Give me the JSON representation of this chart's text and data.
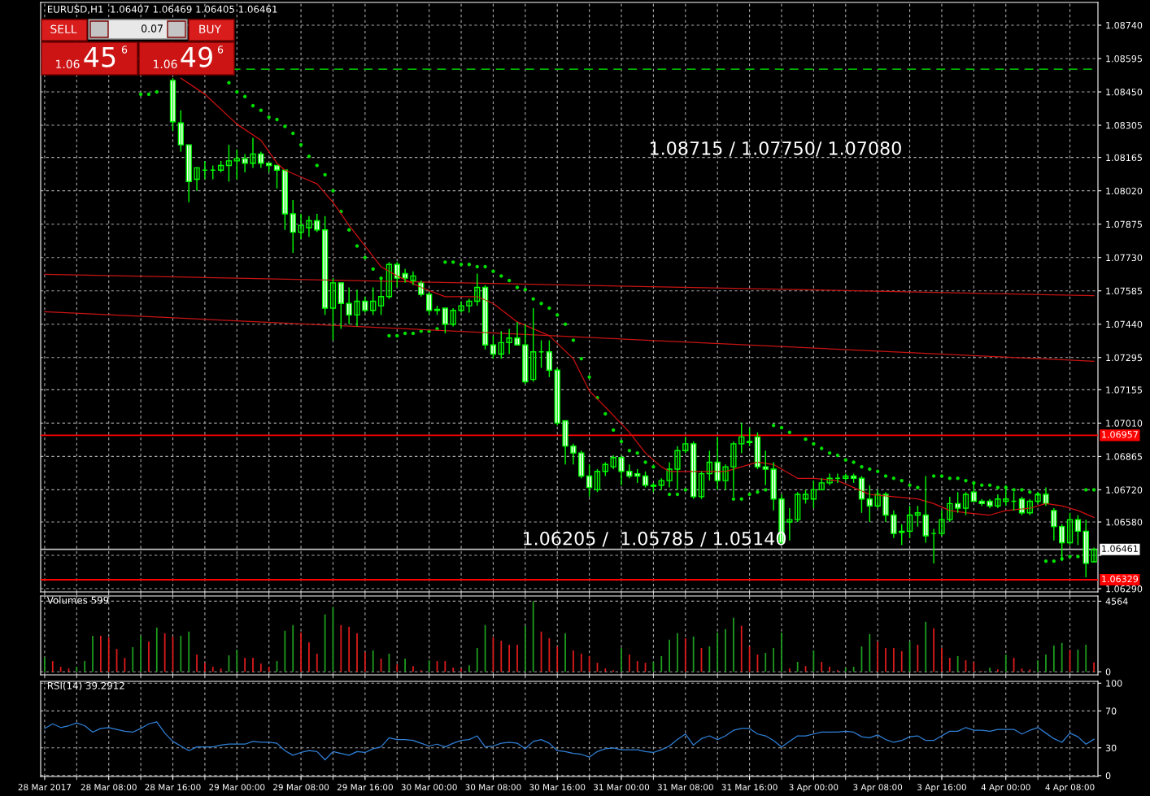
{
  "chart_data": [
    {
      "type": "candlestick",
      "title": "EURUSD,H1  1.06407 1.06469 1.06405 1.06461",
      "color": "#00ff00",
      "grid": true,
      "tick_labels": "y",
      "categories": [
        null,
        null,
        null,
        null,
        null,
        null,
        null,
        null,
        null,
        null,
        null,
        null,
        null,
        null,
        null,
        null,
        null,
        null,
        null,
        null,
        null,
        null,
        null,
        null,
        null,
        null,
        null,
        null,
        null,
        null,
        null,
        null,
        null,
        null,
        null,
        null,
        null,
        null,
        null,
        null,
        null,
        null,
        null,
        null,
        null,
        null,
        null,
        null,
        null,
        null,
        null,
        null,
        null,
        null,
        null,
        null,
        null,
        null,
        null,
        null,
        null,
        null,
        null,
        null,
        null,
        null,
        null,
        null,
        null,
        null,
        null,
        null,
        null,
        null,
        null,
        null,
        null,
        null,
        null,
        null,
        null,
        null,
        null,
        null,
        null,
        null,
        null,
        null,
        null,
        null,
        null,
        null,
        null,
        null,
        null,
        null,
        null,
        null,
        null,
        null,
        null,
        null,
        null,
        null,
        null,
        null,
        null,
        null,
        null,
        null,
        null,
        null,
        null,
        null,
        null,
        null,
        null,
        null,
        null,
        null,
        null,
        null,
        null,
        null,
        null,
        null,
        null,
        null,
        null,
        null,
        null,
        null
      ],
      "ohlc": [
        null,
        null,
        null,
        null,
        null,
        null,
        null,
        null,
        null,
        null,
        null,
        null,
        null,
        null,
        null,
        null,
        [
          1.085,
          1.0851,
          1.0828,
          1.0832
        ],
        [
          1.08315,
          1.0837,
          1.0819,
          1.0822
        ],
        [
          1.0822,
          1.0822,
          1.0797,
          1.0806
        ],
        [
          1.0807,
          1.0812,
          1.0802,
          1.0812
        ],
        [
          1.0811,
          1.0815,
          1.0807,
          1.0811
        ],
        [
          1.0811,
          1.0813,
          1.0807,
          1.0811
        ],
        [
          1.0811,
          1.0815,
          1.081,
          1.0813
        ],
        [
          1.0813,
          1.0822,
          1.0806,
          1.0815
        ],
        [
          1.0815,
          1.082,
          1.0807,
          1.0816
        ],
        [
          1.0816,
          1.0818,
          1.081,
          1.0814
        ],
        [
          1.0814,
          1.0825,
          1.0812,
          1.0818
        ],
        [
          1.0818,
          1.0819,
          1.0812,
          1.0814
        ],
        [
          1.0814,
          1.0814,
          1.081,
          1.0813
        ],
        [
          1.0813,
          1.0813,
          1.0803,
          1.0811
        ],
        [
          1.0811,
          1.0811,
          1.0785,
          1.0792
        ],
        [
          1.0792,
          1.0798,
          1.0775,
          1.0784
        ],
        [
          1.0784,
          1.0792,
          1.0781,
          1.0787
        ],
        [
          1.0786,
          1.0791,
          1.0782,
          1.0789
        ],
        [
          1.0789,
          1.0792,
          1.0784,
          1.0785
        ],
        [
          1.0785,
          1.0791,
          1.0748,
          1.0751
        ],
        [
          1.0751,
          1.0764,
          1.0737,
          1.0762
        ],
        [
          1.0762,
          1.0762,
          1.0742,
          1.0753
        ],
        [
          1.0753,
          1.076,
          1.0744,
          1.0748
        ],
        [
          1.0748,
          1.0759,
          1.0743,
          1.0754
        ],
        [
          1.0754,
          1.0756,
          1.0749,
          1.075
        ],
        [
          1.075,
          1.076,
          1.0748,
          1.0754
        ],
        [
          1.0752,
          1.0764,
          1.0748,
          1.0756
        ],
        [
          1.0756,
          1.0771,
          1.0755,
          1.077
        ],
        [
          1.077,
          1.0771,
          1.076,
          1.0764
        ],
        [
          1.0766,
          1.0768,
          1.0762,
          1.0764
        ],
        [
          1.0763,
          1.0767,
          1.0761,
          1.0765
        ],
        [
          1.0762,
          1.0763,
          1.0756,
          1.0757
        ],
        [
          1.0757,
          1.0758,
          1.0748,
          1.075
        ],
        [
          1.07505,
          1.0752,
          1.0748,
          1.075
        ],
        [
          1.0751,
          1.0751,
          1.074,
          1.0744
        ],
        [
          1.0744,
          1.0751,
          1.0743,
          1.075
        ],
        [
          1.075,
          1.0754,
          1.0749,
          1.0752
        ],
        [
          1.0752,
          1.0755,
          1.0749,
          1.0754
        ],
        [
          1.0754,
          1.0766,
          1.0752,
          1.076
        ],
        [
          1.076,
          1.0761,
          1.0733,
          1.0735
        ],
        [
          1.0735,
          1.0739,
          1.0729,
          1.0731
        ],
        [
          1.0731,
          1.0741,
          1.0729,
          1.0736
        ],
        [
          1.0736,
          1.0742,
          1.0731,
          1.0738
        ],
        [
          1.0738,
          1.0745,
          1.0735,
          1.0735
        ],
        [
          1.0735,
          1.0744,
          1.0718,
          1.0719
        ],
        [
          1.072,
          1.0751,
          1.0719,
          1.0732
        ],
        [
          1.0732,
          1.0737,
          1.0725,
          1.0732
        ],
        [
          1.0732,
          1.0737,
          1.0721,
          1.0724
        ],
        [
          1.0724,
          1.0725,
          1.07,
          1.0701
        ],
        [
          1.0702,
          1.0702,
          1.0683,
          1.0691
        ],
        [
          1.0691,
          1.0692,
          1.0683,
          1.0688
        ],
        [
          1.0688,
          1.0689,
          1.0677,
          1.0678
        ],
        [
          1.0678,
          1.0683,
          1.0669,
          1.0673
        ],
        [
          1.0672,
          1.0681,
          1.0671,
          1.068
        ],
        [
          1.068,
          1.0684,
          1.0678,
          1.0683
        ],
        [
          1.0682,
          1.0687,
          1.0681,
          1.0686
        ],
        [
          1.0686,
          1.0687,
          1.0674,
          1.068
        ],
        [
          1.068,
          1.0683,
          1.0677,
          1.0678
        ],
        [
          1.0679,
          1.0681,
          1.0675,
          1.0678
        ],
        [
          1.0678,
          1.068,
          1.0673,
          1.0674
        ],
        [
          1.0674,
          1.0675,
          1.0671,
          1.06735
        ],
        [
          1.0674,
          1.0677,
          1.0672,
          1.0676
        ],
        [
          1.0676,
          1.0684,
          1.0673,
          1.0681
        ],
        [
          1.0681,
          1.0691,
          1.0672,
          1.0689
        ],
        [
          1.0689,
          1.0695,
          1.0688,
          1.0692
        ],
        [
          1.0692,
          1.0693,
          1.0668,
          1.0669
        ],
        [
          1.0669,
          1.068,
          1.0668,
          1.0679
        ],
        [
          1.0679,
          1.0689,
          1.0676,
          1.0684
        ],
        [
          1.0684,
          1.0695,
          1.0672,
          1.0676
        ],
        [
          1.0676,
          1.0683,
          1.0672,
          1.0682
        ],
        [
          1.0682,
          1.0693,
          1.0669,
          1.0692
        ],
        [
          1.0692,
          1.0701,
          1.0688,
          1.0695
        ],
        [
          1.0693,
          1.0699,
          1.0691,
          1.06925
        ],
        [
          1.0695,
          1.0697,
          1.0681,
          1.0682
        ],
        [
          1.0682,
          1.0689,
          1.0674,
          1.0681
        ],
        [
          1.0681,
          1.0684,
          1.0663,
          1.0668
        ],
        [
          1.0668,
          1.067,
          1.0648,
          1.0649
        ],
        [
          1.0658,
          1.0664,
          1.065,
          1.0659
        ],
        [
          1.0659,
          1.0671,
          1.0658,
          1.067
        ],
        [
          1.0668,
          1.0672,
          1.0666,
          1.067
        ],
        [
          1.0668,
          1.0676,
          1.0664,
          1.0672
        ],
        [
          1.0672,
          1.0677,
          1.0672,
          1.0675
        ],
        [
          1.0675,
          1.0679,
          1.0674,
          1.0677
        ],
        [
          1.0677,
          1.0679,
          1.0675,
          1.0677
        ],
        [
          1.0677,
          1.0679,
          1.0676,
          1.0678
        ],
        [
          1.0678,
          1.0679,
          1.0675,
          1.0677
        ],
        [
          1.0677,
          1.0678,
          1.0662,
          1.0668
        ],
        [
          1.0668,
          1.0674,
          1.0658,
          1.0665
        ],
        [
          1.0665,
          1.0672,
          1.0664,
          1.067
        ],
        [
          1.067,
          1.0671,
          1.0658,
          1.0661
        ],
        [
          1.0661,
          1.0663,
          1.0651,
          1.0653
        ],
        [
          1.0654,
          1.0657,
          1.0648,
          1.06535
        ],
        [
          1.0654,
          1.0665,
          1.0651,
          1.0661
        ],
        [
          1.0661,
          1.0665,
          1.0656,
          1.0662
        ],
        [
          1.0661,
          1.0678,
          1.0649,
          1.0652
        ],
        [
          1.0653,
          1.0655,
          1.064,
          1.0653
        ],
        [
          1.0653,
          1.0663,
          1.0652,
          1.0659
        ],
        [
          1.0659,
          1.0669,
          1.0658,
          1.0666
        ],
        [
          1.0666,
          1.0671,
          1.0662,
          1.0664
        ],
        [
          1.0664,
          1.0671,
          1.0661,
          1.067
        ],
        [
          1.0671,
          1.0675,
          1.0667,
          1.0667
        ],
        [
          1.0667,
          1.0668,
          1.0665,
          1.0666
        ],
        [
          1.0667,
          1.0668,
          1.0664,
          1.0665
        ],
        [
          1.0665,
          1.067,
          1.0664,
          1.0668
        ],
        [
          1.0667,
          1.0674,
          1.0665,
          1.0668
        ],
        [
          1.0667,
          1.0671,
          1.0663,
          1.0667
        ],
        [
          1.0668,
          1.0669,
          1.0661,
          1.0662
        ],
        [
          1.0662,
          1.0668,
          1.0661,
          1.0667
        ],
        [
          1.0667,
          1.0671,
          1.0666,
          1.067
        ],
        [
          1.067,
          1.0673,
          1.0665,
          1.0666
        ],
        [
          1.0663,
          1.0664,
          1.065,
          1.0656
        ],
        [
          1.0656,
          1.0657,
          1.0641,
          1.0649
        ],
        [
          1.0649,
          1.0662,
          1.0648,
          1.0659
        ],
        [
          1.0659,
          1.0661,
          1.0648,
          1.0654
        ],
        [
          1.0654,
          1.0659,
          1.0634,
          1.064
        ],
        [
          1.06407,
          1.06469,
          1.06405,
          1.06461
        ]
      ],
      "series": [
        {
          "type": "line",
          "color": "#d01010",
          "values": [
            null,
            null,
            null,
            null,
            null,
            null,
            null,
            null,
            null,
            null,
            null,
            null,
            null,
            null,
            null,
            null,
            null,
            1.0851,
            null,
            null,
            1.0844,
            null,
            null,
            null,
            1.0831,
            null,
            null,
            1.0824,
            null,
            1.0814,
            1.0811,
            null,
            1.0808,
            null,
            1.0805,
            null,
            1.0797,
            null,
            1.0787,
            null,
            1.0778,
            null,
            1.0769,
            null,
            1.0765,
            null,
            null,
            1.076,
            null,
            null,
            1.0756,
            null,
            null,
            1.0756,
            1.0756,
            null,
            1.0753,
            null,
            null,
            1.0745,
            null,
            null,
            null,
            1.0739,
            null,
            null,
            1.0729,
            null,
            1.0715,
            null,
            1.0708,
            null,
            null,
            1.0697,
            null,
            1.0688,
            null,
            1.0682,
            1.068,
            null,
            null,
            1.068,
            null,
            1.068,
            null,
            1.068,
            null,
            1.0682,
            null,
            1.0684,
            null,
            1.0683,
            null,
            null,
            1.0677,
            null,
            1.0677,
            null,
            null,
            1.0676,
            null,
            1.0673,
            null,
            1.067,
            null,
            null,
            1.0669,
            null,
            null,
            1.0668,
            null,
            1.0666,
            null,
            1.0663,
            null,
            1.0662,
            null,
            null,
            1.0661,
            null,
            1.0663,
            null,
            null,
            1.0664,
            null,
            1.0666,
            null,
            1.0665,
            null,
            1.0663,
            null,
            1.066
          ]
        },
        {
          "type": "line",
          "color": "#c81414",
          "values": [
            1.07657,
            null,
            null,
            null,
            null,
            null,
            null,
            null,
            null,
            null,
            null,
            null,
            null,
            null,
            null,
            null,
            null,
            null,
            null,
            null,
            null,
            null,
            null,
            null,
            null,
            null,
            null,
            null,
            null,
            null,
            null,
            null,
            null,
            null,
            null,
            null,
            null,
            null,
            null,
            null,
            null,
            null,
            null,
            null,
            null,
            null,
            null,
            null,
            null,
            null,
            null,
            null,
            null,
            null,
            null,
            null,
            null,
            null,
            null,
            null,
            null,
            null,
            null,
            null,
            null,
            null,
            null,
            null,
            null,
            null,
            null,
            null,
            null,
            null,
            null,
            null,
            null,
            null,
            null,
            null,
            null,
            null,
            null,
            null,
            null,
            null,
            null,
            null,
            null,
            null,
            null,
            null,
            null,
            null,
            null,
            null,
            null,
            null,
            null,
            null,
            null,
            null,
            null,
            null,
            null,
            null,
            null,
            null,
            null,
            null,
            null,
            null,
            null,
            null,
            null,
            null,
            null,
            null,
            null,
            null,
            null,
            null,
            null,
            null,
            null,
            null,
            null,
            null,
            null,
            null,
            null,
            1.07564
          ]
        },
        {
          "type": "line",
          "color": "#c81414",
          "values": [
            1.07494,
            null,
            null,
            null,
            null,
            null,
            null,
            null,
            null,
            null,
            null,
            null,
            null,
            null,
            null,
            null,
            null,
            null,
            null,
            null,
            null,
            null,
            null,
            null,
            null,
            null,
            null,
            null,
            null,
            null,
            null,
            null,
            null,
            null,
            null,
            null,
            null,
            null,
            null,
            null,
            null,
            null,
            null,
            null,
            null,
            null,
            null,
            null,
            null,
            null,
            null,
            null,
            null,
            null,
            null,
            null,
            null,
            null,
            null,
            null,
            null,
            null,
            null,
            null,
            null,
            null,
            null,
            null,
            null,
            null,
            null,
            null,
            null,
            null,
            null,
            null,
            null,
            null,
            null,
            null,
            null,
            null,
            null,
            null,
            null,
            null,
            null,
            null,
            null,
            null,
            null,
            null,
            null,
            null,
            null,
            null,
            null,
            null,
            null,
            null,
            null,
            null,
            null,
            null,
            null,
            null,
            null,
            null,
            null,
            null,
            null,
            null,
            null,
            null,
            null,
            null,
            null,
            null,
            null,
            null,
            null,
            null,
            null,
            null,
            null,
            null,
            null,
            null,
            null,
            null,
            null,
            1.07279
          ]
        },
        {
          "type": "scatter",
          "color": "#00e000",
          "marker": "circle",
          "values": [
            null,
            null,
            null,
            null,
            null,
            null,
            null,
            null,
            null,
            null,
            null,
            null,
            1.0844,
            1.0844,
            1.0845,
            null,
            null,
            null,
            null,
            null,
            null,
            null,
            null,
            1.0849,
            1.0845,
            1.0843,
            1.0839,
            1.0837,
            1.0834,
            1.0833,
            1.083,
            1.0827,
            1.0822,
            1.0817,
            1.0813,
            1.0809,
            1.0802,
            1.0793,
            1.0785,
            1.0778,
            1.0773,
            1.0768,
            1.0764,
            1.0739,
            1.0739,
            1.074,
            1.074,
            1.0741,
            1.0741,
            1.0742,
            1.0771,
            1.0771,
            1.077,
            1.077,
            1.0769,
            1.0769,
            1.0767,
            1.0765,
            1.0763,
            1.076,
            1.0759,
            1.0755,
            1.0753,
            1.0751,
            1.0748,
            1.0744,
            1.0737,
            1.0729,
            1.0721,
            1.0712,
            1.0705,
            1.0698,
            1.0693,
            1.0689,
            1.0688,
            1.0684,
            1.0682,
            null,
            1.067,
            1.067,
            1.0672,
            null,
            null,
            null,
            null,
            null,
            1.0668,
            1.0668,
            1.067,
            1.0671,
            1.0672,
            1.07,
            1.0699,
            1.0697,
            null,
            1.0694,
            1.0692,
            1.069,
            1.0688,
            1.0687,
            1.0685,
            1.0684,
            1.0682,
            1.0681,
            1.068,
            1.0678,
            1.0677,
            1.0676,
            1.0674,
            1.0673,
            null,
            1.0678,
            1.0678,
            1.0677,
            1.0677,
            1.0676,
            1.0675,
            1.0674,
            1.0674,
            1.0673,
            1.0673,
            1.0672,
            1.0672,
            1.0671,
            1.067,
            1.0641,
            1.0641,
            1.0642,
            1.0643,
            1.0643,
            1.0672,
            1.0672
          ]
        }
      ],
      "ylim": [
        1.06276,
        1.08839
      ],
      "yticks": [
        {
          "value": 1.0874,
          "label": "1.08740"
        },
        {
          "value": 1.08595,
          "label": "1.08595"
        },
        {
          "value": 1.0845,
          "label": "1.08450"
        },
        {
          "value": 1.08305,
          "label": "1.08305"
        },
        {
          "value": 1.08165,
          "label": "1.08165"
        },
        {
          "value": 1.0802,
          "label": "1.08020"
        },
        {
          "value": 1.07875,
          "label": "1.07875"
        },
        {
          "value": 1.0773,
          "label": "1.07730"
        },
        {
          "value": 1.07585,
          "label": "1.07585"
        },
        {
          "value": 1.0744,
          "label": "1.07440"
        },
        {
          "value": 1.07295,
          "label": "1.07295"
        },
        {
          "value": 1.07155,
          "label": "1.07155"
        },
        {
          "value": 1.0701,
          "label": "1.07010"
        },
        {
          "value": 1.06865,
          "label": "1.06865"
        },
        {
          "value": 1.0672,
          "label": "1.06720"
        },
        {
          "value": 1.0658,
          "label": "1.06580"
        },
        {
          "value": 1.06435,
          "label": null
        },
        {
          "value": 1.0629,
          "label": "1.06290"
        }
      ],
      "ref_lines": [
        {
          "axis": "y",
          "value": 1.06957,
          "label": "1.06957",
          "color": "#ff0000"
        },
        {
          "axis": "y",
          "value": 1.06329,
          "label": "1.06329",
          "color": "#ff0000"
        },
        {
          "axis": "y",
          "value": 1.06461,
          "label": "1.06461",
          "color": "#c0c0c0"
        },
        {
          "axis": "y",
          "value": 1.08549,
          "color": "#00b400",
          "line_style": "dashed"
        }
      ],
      "annotations": [
        "1.08715 / 1.07750/ 1.07080",
        "1.06205 /  1.05785 / 1.05140",
        "SELL",
        "0.07",
        "BUY",
        "1.06",
        "45",
        "6",
        "1.06",
        "49",
        "6"
      ]
    },
    {
      "type": "bar",
      "title": "Volumes 599",
      "grid": true,
      "tick_labels": "y",
      "categories": [
        null,
        null,
        null,
        null,
        null,
        null,
        null,
        null,
        null,
        null,
        null,
        null,
        null,
        null,
        null,
        null,
        null,
        null,
        null,
        null,
        null,
        null,
        null,
        null,
        null,
        null,
        null,
        null,
        null,
        null,
        null,
        null,
        null,
        null,
        null,
        null,
        null,
        null,
        null,
        null,
        null,
        null,
        null,
        null,
        null,
        null,
        null,
        null,
        null,
        null,
        null,
        null,
        null,
        null,
        null,
        null,
        null,
        null,
        null,
        null,
        null,
        null,
        null,
        null,
        null,
        null,
        null,
        null,
        null,
        null,
        null,
        null,
        null,
        null,
        null,
        null,
        null,
        null,
        null,
        null,
        null,
        null,
        null,
        null,
        null,
        null,
        null,
        null,
        null,
        null,
        null,
        null,
        null,
        null,
        null,
        null,
        null,
        null,
        null,
        null,
        null,
        null,
        null,
        null,
        null,
        null,
        null,
        null,
        null,
        null,
        null,
        null,
        null,
        null,
        null,
        null,
        null,
        null,
        null,
        null,
        null,
        null,
        null,
        null,
        null,
        null,
        null,
        null,
        null,
        null,
        null,
        null
      ],
      "values": [
        950,
        690,
        320,
        210,
        320,
        690,
        2330,
        2330,
        2230,
        1480,
        900,
        1590,
        2330,
        1960,
        2860,
        2490,
        2280,
        2330,
        2600,
        1110,
        580,
        320,
        210,
        1060,
        1430,
        900,
        900,
        530,
        320,
        690,
        2650,
        3020,
        2540,
        1900,
        1170,
        3710,
        4190,
        3020,
        2910,
        2490,
        1270,
        1380,
        850,
        1170,
        480,
        850,
        370,
        100,
        740,
        690,
        690,
        260,
        210,
        420,
        1540,
        3020,
        2230,
        2010,
        1750,
        1750,
        2970,
        4564,
        2600,
        2170,
        1640,
        2490,
        1380,
        1170,
        1010,
        580,
        210,
        100,
        1540,
        1110,
        690,
        580,
        640,
        1010,
        2070,
        2490,
        2170,
        2280,
        1540,
        1640,
        2540,
        2760,
        3500,
        2970,
        1640,
        1110,
        1220,
        1540,
        2540,
        210,
        640,
        370,
        1380,
        640,
        320,
        100,
        260,
        320,
        1640,
        2440,
        1960,
        1540,
        1540,
        1330,
        1960,
        1750,
        3230,
        2810,
        1540,
        900,
        1010,
        740,
        640,
        50,
        260,
        150,
        1110,
        900,
        210,
        150,
        740,
        1110,
        1700,
        1860,
        1430,
        1430,
        1750,
        599
      ],
      "colors": [
        "#1e9e1e",
        "#e01b1b",
        "#e01b1b",
        "#e01b1b",
        "#1e9e1e",
        "#1e9e1e",
        "#1e9e1e",
        "#e01b1b",
        "#e01b1b",
        "#e01b1b",
        "#e01b1b",
        "#1e9e1e",
        "#1e9e1e",
        "#e01b1b",
        "#1e9e1e",
        "#e01b1b",
        "#e01b1b",
        "#1e9e1e",
        "#1e9e1e",
        "#e01b1b",
        "#e01b1b",
        "#e01b1b",
        "#e01b1b",
        "#1e9e1e",
        "#1e9e1e",
        "#e01b1b",
        "#e01b1b",
        "#e01b1b",
        "#e01b1b",
        "#1e9e1e",
        "#1e9e1e",
        "#1e9e1e",
        "#e01b1b",
        "#e01b1b",
        "#e01b1b",
        "#1e9e1e",
        "#1e9e1e",
        "#e01b1b",
        "#e01b1b",
        "#e01b1b",
        "#e01b1b",
        "#1e9e1e",
        "#e01b1b",
        "#1e9e1e",
        "#e01b1b",
        "#1e9e1e",
        "#e01b1b",
        "#e01b1b",
        "#1e9e1e",
        "#e01b1b",
        "#e01b1b",
        "#e01b1b",
        "#e01b1b",
        "#1e9e1e",
        "#1e9e1e",
        "#1e9e1e",
        "#e01b1b",
        "#e01b1b",
        "#e01b1b",
        "#e01b1b",
        "#1e9e1e",
        "#1e9e1e",
        "#e01b1b",
        "#e01b1b",
        "#e01b1b",
        "#1e9e1e",
        "#e01b1b",
        "#e01b1b",
        "#e01b1b",
        "#e01b1b",
        "#e01b1b",
        "#e01b1b",
        "#1e9e1e",
        "#e01b1b",
        "#e01b1b",
        "#e01b1b",
        "#1e9e1e",
        "#1e9e1e",
        "#1e9e1e",
        "#1e9e1e",
        "#e01b1b",
        "#1e9e1e",
        "#e01b1b",
        "#1e9e1e",
        "#1e9e1e",
        "#1e9e1e",
        "#1e9e1e",
        "#e01b1b",
        "#e01b1b",
        "#e01b1b",
        "#1e9e1e",
        "#1e9e1e",
        "#1e9e1e",
        "#e01b1b",
        "#1e9e1e",
        "#e01b1b",
        "#1e9e1e",
        "#e01b1b",
        "#e01b1b",
        "#e01b1b",
        "#1e9e1e",
        "#1e9e1e",
        "#1e9e1e",
        "#1e9e1e",
        "#e01b1b",
        "#e01b1b",
        "#e01b1b",
        "#e01b1b",
        "#1e9e1e",
        "#e01b1b",
        "#1e9e1e",
        "#e01b1b",
        "#e01b1b",
        "#e01b1b",
        "#1e9e1e",
        "#e01b1b",
        "#e01b1b",
        "#e01b1b",
        "#1e9e1e",
        "#e01b1b",
        "#1e9e1e",
        "#e01b1b",
        "#e01b1b",
        "#e01b1b",
        "#1e9e1e",
        "#1e9e1e",
        "#1e9e1e",
        "#1e9e1e",
        "#e01b1b",
        "#1e9e1e",
        "#1e9e1e",
        "#e01b1b"
      ],
      "ylim": [
        -200,
        4900
      ],
      "yticks": [
        0,
        4564
      ]
    },
    {
      "type": "line",
      "title": "RSI(14) 39.2912",
      "grid": true,
      "color": "#2f80d8",
      "categories": [
        "28 Mar 2017",
        null,
        null,
        null,
        null,
        null,
        null,
        null,
        "28 Mar 08:00",
        null,
        null,
        null,
        null,
        null,
        null,
        null,
        "28 Mar 16:00",
        null,
        null,
        null,
        null,
        null,
        null,
        null,
        "29 Mar 00:00",
        null,
        null,
        null,
        null,
        null,
        null,
        null,
        "29 Mar 08:00",
        null,
        null,
        null,
        null,
        null,
        null,
        null,
        "29 Mar 16:00",
        null,
        null,
        null,
        null,
        null,
        null,
        null,
        "30 Mar 00:00",
        null,
        null,
        null,
        null,
        null,
        null,
        null,
        "30 Mar 08:00",
        null,
        null,
        null,
        null,
        null,
        null,
        null,
        "30 Mar 16:00",
        null,
        null,
        null,
        null,
        null,
        null,
        null,
        "31 Mar 00:00",
        null,
        null,
        null,
        null,
        null,
        null,
        null,
        "31 Mar 08:00",
        null,
        null,
        null,
        null,
        null,
        null,
        null,
        "31 Mar 16:00",
        null,
        null,
        null,
        null,
        null,
        null,
        null,
        "3 Apr 00:00",
        null,
        null,
        null,
        null,
        null,
        null,
        null,
        "3 Apr 08:00",
        null,
        null,
        null,
        null,
        null,
        null,
        null,
        "3 Apr 16:00",
        null,
        null,
        null,
        null,
        null,
        null,
        null,
        "4 Apr 00:00",
        null,
        null,
        null,
        null,
        null,
        null,
        null,
        "4 Apr 08:00",
        null,
        null,
        null
      ],
      "values": [
        51,
        56,
        52,
        54,
        57,
        54,
        47,
        51,
        52,
        50,
        48,
        47,
        51,
        56,
        58,
        46,
        37,
        32,
        27,
        31,
        31,
        31,
        33,
        34,
        34,
        34,
        37,
        36,
        36,
        35,
        27,
        22,
        25,
        27,
        26,
        17,
        26,
        24,
        22,
        26,
        25,
        29,
        31,
        41,
        39,
        39,
        38,
        35,
        32,
        34,
        31,
        35,
        38,
        39,
        43,
        31,
        32,
        35,
        36,
        35,
        29,
        37,
        39,
        35,
        27,
        26,
        24,
        23,
        20,
        26,
        29,
        30,
        28,
        28,
        28,
        26,
        25,
        28,
        32,
        39,
        45,
        33,
        40,
        43,
        39,
        43,
        49,
        51,
        51,
        45,
        43,
        38,
        31,
        37,
        43,
        43,
        45,
        47,
        47,
        47,
        48,
        47,
        42,
        41,
        44,
        39,
        36,
        38,
        42,
        43,
        38,
        38,
        43,
        48,
        48,
        52,
        49,
        49,
        48,
        50,
        50,
        50,
        45,
        49,
        52,
        46,
        40,
        36,
        46,
        42,
        34,
        39.2912
      ],
      "ylim": [
        -1,
        102
      ],
      "yticks": [
        0,
        30,
        70,
        100
      ]
    }
  ]
}
